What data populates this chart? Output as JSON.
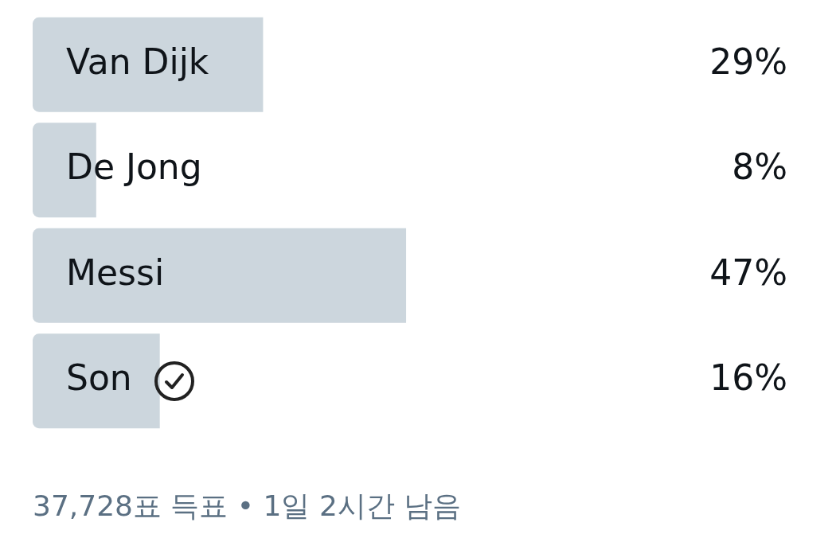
{
  "chart_data": {
    "type": "bar",
    "orientation": "horizontal",
    "categories": [
      "Van Dijk",
      "De Jong",
      "Messi",
      "Son"
    ],
    "values": [
      29,
      8,
      47,
      16
    ],
    "color": "#ccd6dd",
    "value_labels": [
      "29%",
      "8%",
      "47%",
      "16%"
    ],
    "tick_labels": false,
    "legend": false,
    "annotations": [
      "37,728표 득표 • 1일 2시간 남음"
    ]
  }
}
